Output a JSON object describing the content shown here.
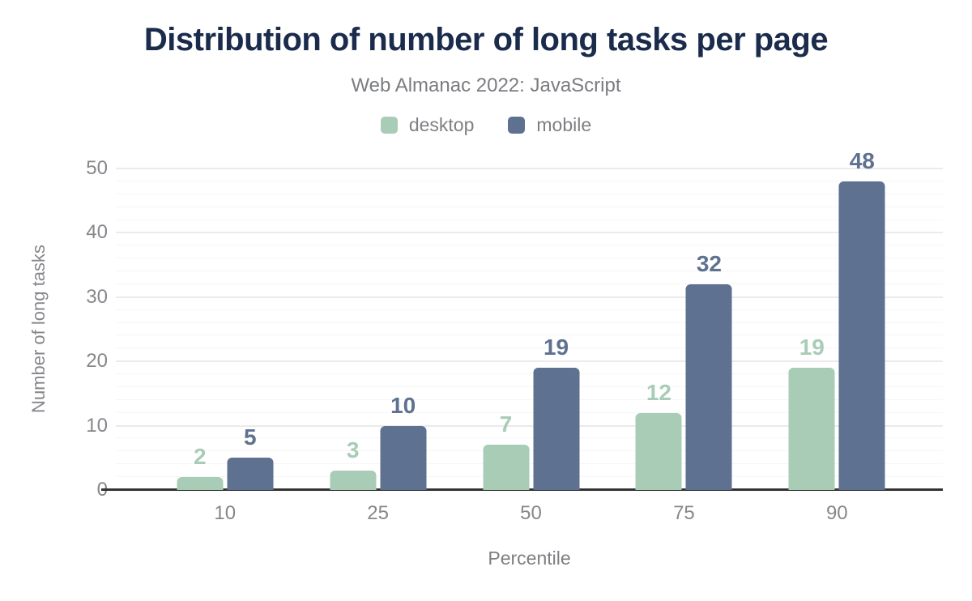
{
  "colors": {
    "background": "#ffffff",
    "title_text": "#1a2b4b",
    "subtitle_text": "#7a7c80",
    "axis_text": "#85878b",
    "axis_title_text": "#7d7f83",
    "grid_major": "#ebebeb",
    "grid_minor": "#f6f6f6",
    "baseline": "#333333",
    "desktop": "#a9ccb7",
    "mobile": "#5e7190"
  },
  "chart_data": {
    "type": "bar",
    "title": "Distribution of number of long tasks per page",
    "subtitle": "Web Almanac 2022: JavaScript",
    "categories": [
      "10",
      "25",
      "50",
      "75",
      "90"
    ],
    "series": [
      {
        "name": "desktop",
        "color": "#a9ccb7",
        "values": [
          2,
          3,
          7,
          12,
          19
        ]
      },
      {
        "name": "mobile",
        "color": "#5e7190",
        "values": [
          5,
          10,
          19,
          32,
          48
        ]
      }
    ],
    "xlabel": "Percentile",
    "ylabel": "Number of long tasks",
    "ylim": [
      0,
      50
    ],
    "yticks": [
      0,
      10,
      20,
      30,
      40,
      50
    ],
    "minor_grid_step": 2,
    "grid": "horizontal",
    "legend_position": "top center",
    "bar_value_labels": true
  }
}
